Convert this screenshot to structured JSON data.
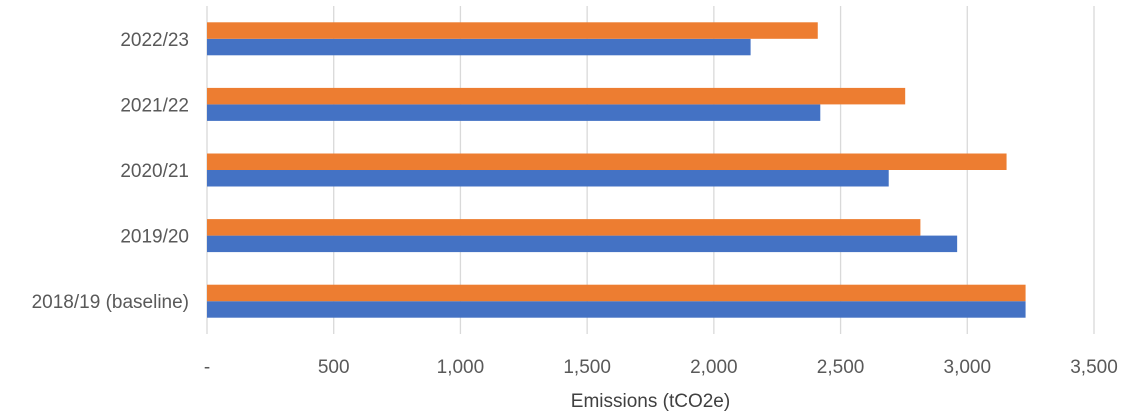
{
  "chart_data": {
    "type": "bar",
    "orientation": "horizontal",
    "categories": [
      "2018/19 (baseline)",
      "2019/20",
      "2020/21",
      "2021/22",
      "2022/23"
    ],
    "series": [
      {
        "color": "#4472C4",
        "values": [
          3230,
          2960,
          2690,
          2420,
          2145
        ]
      },
      {
        "color": "#ED7D31",
        "values": [
          3230,
          2815,
          3155,
          2755,
          2410
        ]
      }
    ],
    "xlabel": "Emissions (tCO2e)",
    "xlim": [
      0,
      3500
    ],
    "xticks": [
      0,
      500,
      1000,
      1500,
      2000,
      2500,
      3000,
      3500
    ],
    "xtick_labels": [
      "-",
      "500",
      "1,000",
      "1,500",
      "2,000",
      "2,500",
      "3,000",
      "3,500"
    ],
    "grid": "vertical",
    "legend": "none"
  }
}
